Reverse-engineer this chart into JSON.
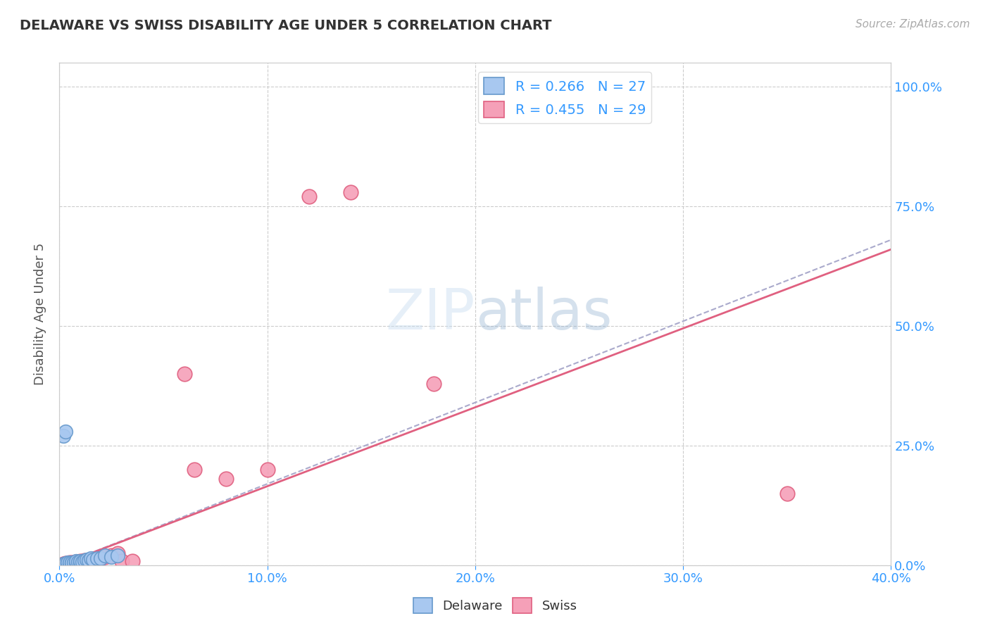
{
  "title": "DELAWARE VS SWISS DISABILITY AGE UNDER 5 CORRELATION CHART",
  "source": "Source: ZipAtlas.com",
  "ylabel_label": "Disability Age Under 5",
  "xlim": [
    0.0,
    0.4
  ],
  "ylim": [
    0.0,
    1.05
  ],
  "xtick_labels": [
    "0.0%",
    "10.0%",
    "20.0%",
    "30.0%",
    "40.0%"
  ],
  "xtick_values": [
    0.0,
    0.1,
    0.2,
    0.3,
    0.4
  ],
  "ytick_labels": [
    "0.0%",
    "25.0%",
    "50.0%",
    "75.0%",
    "100.0%"
  ],
  "ytick_values": [
    0.0,
    0.25,
    0.5,
    0.75,
    1.0
  ],
  "delaware_R": 0.266,
  "delaware_N": 27,
  "swiss_R": 0.455,
  "swiss_N": 29,
  "delaware_color": "#a8c8f0",
  "swiss_color": "#f5a0b8",
  "delaware_edge": "#6699cc",
  "swiss_edge": "#e06080",
  "delaware_x": [
    0.002,
    0.003,
    0.004,
    0.004,
    0.005,
    0.005,
    0.006,
    0.006,
    0.007,
    0.008,
    0.008,
    0.009,
    0.01,
    0.01,
    0.011,
    0.012,
    0.013,
    0.014,
    0.015,
    0.016,
    0.018,
    0.02,
    0.022,
    0.025,
    0.028,
    0.002,
    0.003
  ],
  "delaware_y": [
    0.003,
    0.004,
    0.004,
    0.005,
    0.003,
    0.005,
    0.004,
    0.006,
    0.005,
    0.006,
    0.008,
    0.007,
    0.005,
    0.008,
    0.007,
    0.01,
    0.012,
    0.01,
    0.015,
    0.012,
    0.015,
    0.015,
    0.02,
    0.018,
    0.02,
    0.27,
    0.28
  ],
  "swiss_x": [
    0.002,
    0.003,
    0.004,
    0.005,
    0.006,
    0.007,
    0.008,
    0.009,
    0.01,
    0.011,
    0.012,
    0.013,
    0.015,
    0.016,
    0.018,
    0.02,
    0.022,
    0.025,
    0.028,
    0.03,
    0.035,
    0.06,
    0.065,
    0.08,
    0.1,
    0.12,
    0.14,
    0.18,
    0.35
  ],
  "swiss_y": [
    0.003,
    0.004,
    0.004,
    0.005,
    0.005,
    0.006,
    0.007,
    0.006,
    0.008,
    0.007,
    0.01,
    0.008,
    0.01,
    0.012,
    0.015,
    0.015,
    0.018,
    0.02,
    0.025,
    0.008,
    0.008,
    0.4,
    0.2,
    0.18,
    0.2,
    0.77,
    0.78,
    0.38,
    0.15
  ],
  "delaware_trend": [
    0.0,
    0.4,
    0.0,
    0.68
  ],
  "swiss_trend": [
    0.0,
    0.4,
    0.0,
    0.66
  ]
}
